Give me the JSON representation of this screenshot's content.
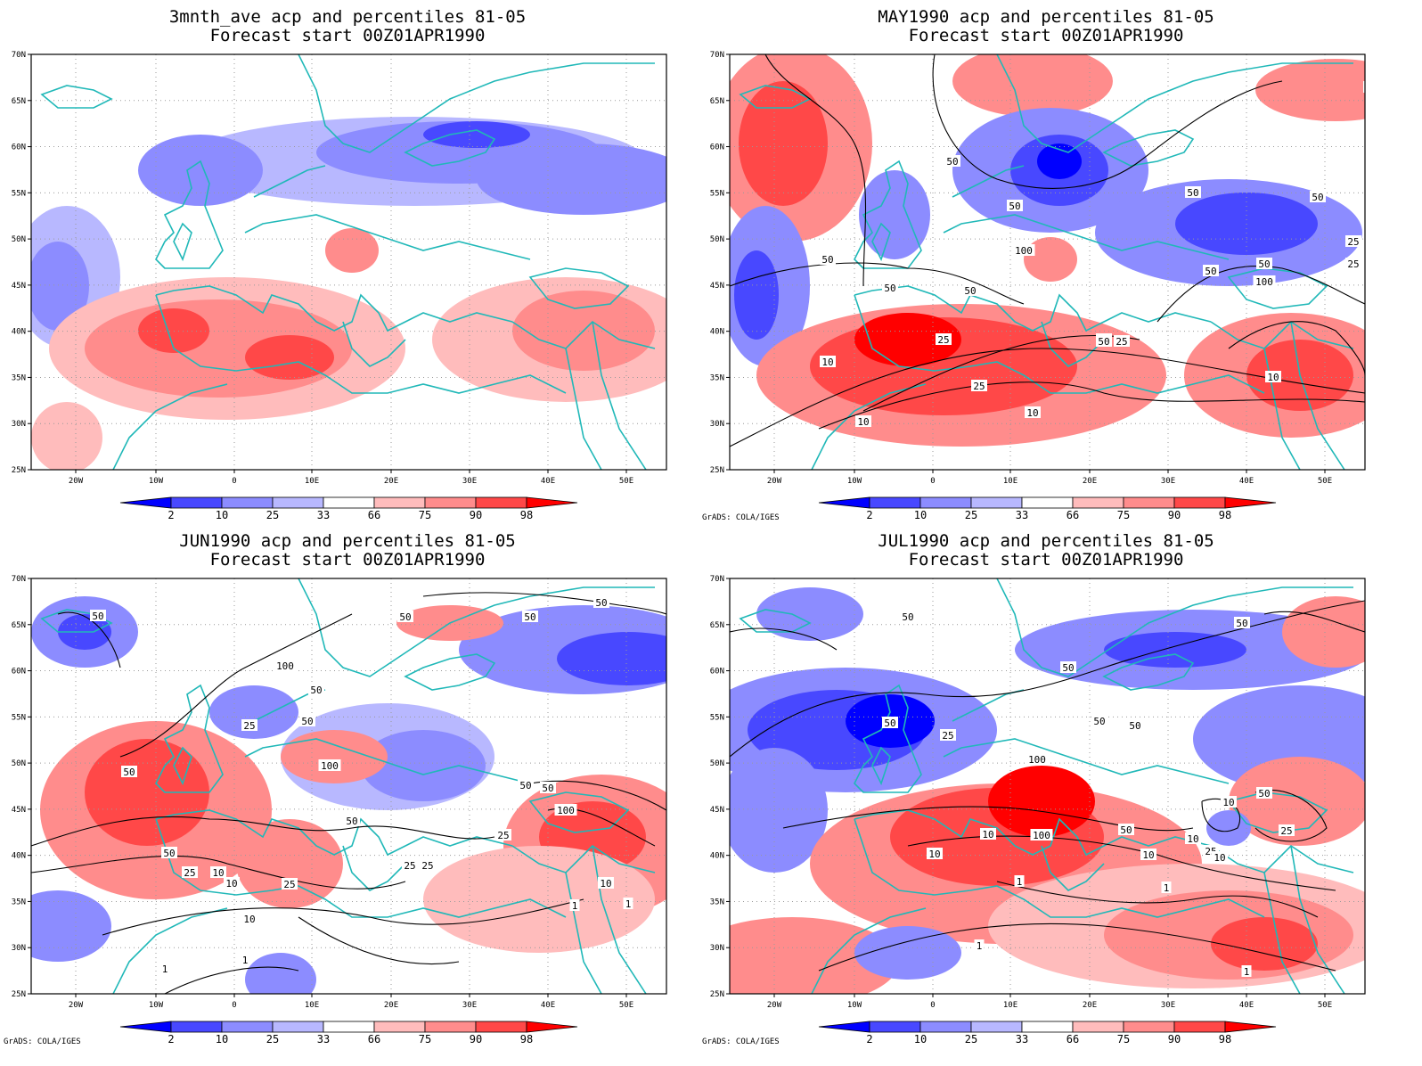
{
  "credit": "GrADS: COLA/IGES",
  "colors": {
    "coast": "#20b8b8",
    "contour": "#000000",
    "grid": "#9a9a9a",
    "blue_dark": "#0000ff",
    "blue_mid": "#4848ff",
    "blue_light": "#8c8cff",
    "blue_pale": "#b8b8ff",
    "red_pale": "#ffbcbc",
    "red_light": "#ff8c8c",
    "red_mid": "#ff4848",
    "red_dark": "#ff0000"
  },
  "axes": {
    "lat_labels": [
      "70N",
      "65N",
      "60N",
      "55N",
      "50N",
      "45N",
      "40N",
      "35N",
      "30N",
      "25N"
    ],
    "lon_labels": [
      "20W",
      "10W",
      "0",
      "10E",
      "20E",
      "30E",
      "40E",
      "50E"
    ]
  },
  "colorbar": {
    "labels": [
      "2",
      "10",
      "25",
      "33",
      "66",
      "75",
      "90",
      "98"
    ]
  },
  "panels": [
    {
      "id": "p1",
      "title1": "3mnth_ave acp and percentiles 81-05",
      "title2": "Forecast start 00Z01APR1990",
      "show_credit": false,
      "contour_labels": []
    },
    {
      "id": "p2",
      "title1": "MAY1990 acp and percentiles 81-05",
      "title2": "Forecast start 00Z01APR1990",
      "show_credit": true,
      "contour_labels": [
        "50",
        "50",
        "50",
        "50",
        "50",
        "100",
        "50",
        "25",
        "50",
        "50",
        "100",
        "25",
        "50",
        "25",
        "50",
        "25",
        "10",
        "25",
        "10",
        "10",
        "50",
        "25",
        "10"
      ]
    },
    {
      "id": "p3",
      "title1": "JUN1990 acp and percentiles 81-05",
      "title2": "Forecast start 00Z01APR1990",
      "show_credit": true,
      "contour_labels": [
        "50",
        "50",
        "50",
        "50",
        "100",
        "50",
        "25",
        "50",
        "50",
        "100",
        "50",
        "50",
        "50",
        "100",
        "25",
        "50",
        "25",
        "10",
        "25",
        "10",
        "25",
        "25",
        "10",
        "1",
        "10",
        "1",
        "1",
        "1"
      ]
    },
    {
      "id": "p4",
      "title1": "JUL1990 acp and percentiles 81-05",
      "title2": "Forecast start 00Z01APR1990",
      "show_credit": true,
      "contour_labels": [
        "50",
        "50",
        "50",
        "50",
        "50",
        "25",
        "50",
        "100",
        "50",
        "10",
        "100",
        "10",
        "25",
        "10",
        "10",
        "50",
        "25",
        "10",
        "1",
        "10",
        "1",
        "1",
        "1"
      ]
    }
  ]
}
